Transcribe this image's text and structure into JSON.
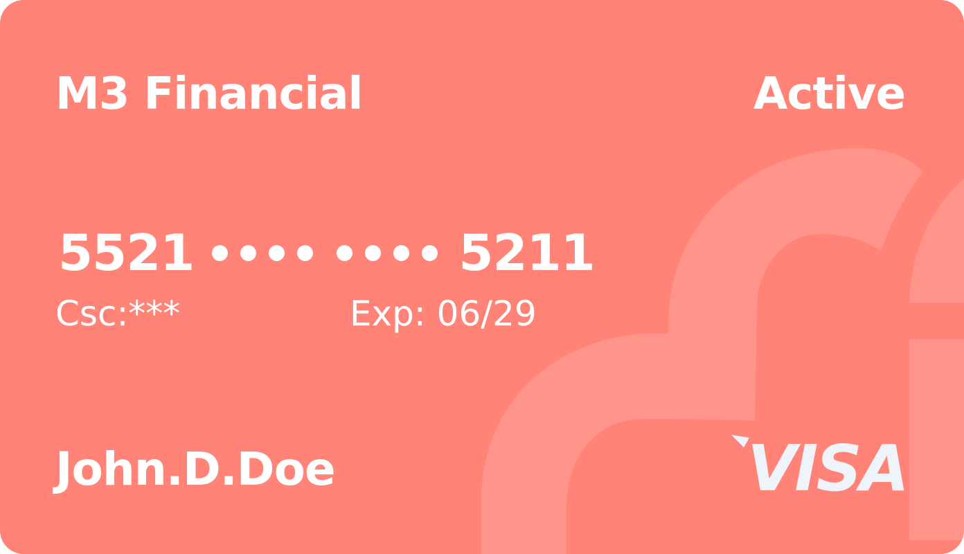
{
  "card": {
    "brand": "M3 Financial",
    "status": "Active",
    "number_first": "5521",
    "number_last": "5211",
    "csc_label": "Csc:***",
    "expiry_label": "Exp: 06/29",
    "holder_name": "John.D.Doe",
    "network": "VISA",
    "masked_groups": 2,
    "dots_per_group": 4
  },
  "colors": {
    "card_background": "#FF8376",
    "card_art": "#FF958A",
    "text": "#FFFFFF",
    "logo": "#EEF4FA"
  },
  "icons": {
    "background_art": "decorative-arc-shapes",
    "network_logo": "visa-logo"
  }
}
